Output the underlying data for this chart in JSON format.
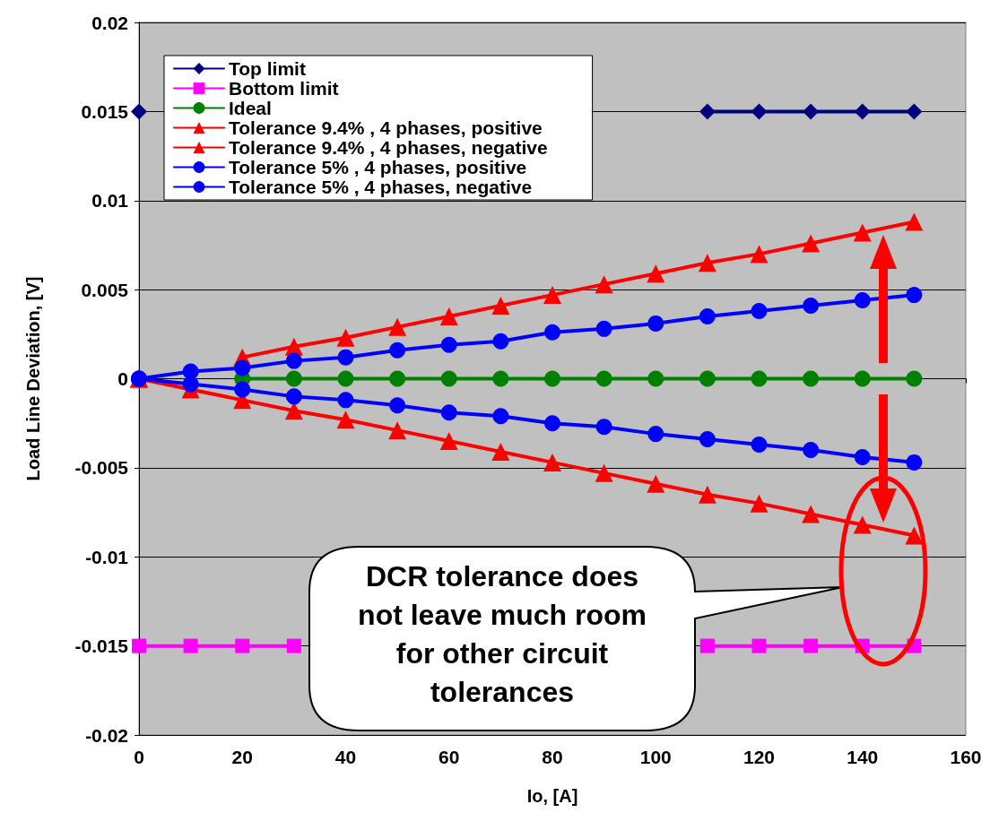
{
  "chart_data": {
    "type": "line",
    "xlabel": "Io, [A]",
    "ylabel": "Load Line Deviation, [V]",
    "x": [
      0,
      10,
      20,
      30,
      40,
      50,
      60,
      70,
      80,
      90,
      100,
      110,
      120,
      130,
      140,
      150
    ],
    "xlim": [
      0,
      160
    ],
    "xticks": [
      0,
      20,
      40,
      60,
      80,
      100,
      120,
      140,
      160
    ],
    "ylim": [
      -0.02,
      0.02
    ],
    "yticks": [
      -0.02,
      -0.015,
      -0.01,
      -0.005,
      0,
      0.005,
      0.01,
      0.015,
      0.02
    ],
    "grid": "y",
    "legend": "top left",
    "line_style": "solid",
    "annotations": [
      "DCR tolerance does not leave much room for other circuit tolerances"
    ],
    "series": [
      {
        "name": "Top limit",
        "color": "#000080",
        "marker": "diamond",
        "values": [
          0.015,
          null,
          null,
          null,
          null,
          null,
          null,
          null,
          null,
          null,
          null,
          0.015,
          0.015,
          0.015,
          0.015,
          0.015
        ]
      },
      {
        "name": "Bottom limit",
        "color": "#ff00ff",
        "marker": "square",
        "values": [
          -0.015,
          -0.015,
          -0.015,
          -0.015,
          null,
          null,
          null,
          null,
          null,
          null,
          null,
          -0.015,
          -0.015,
          -0.015,
          -0.015,
          -0.015
        ]
      },
      {
        "name": "Ideal",
        "color": "#008000",
        "marker": "circle",
        "values": [
          0,
          null,
          0,
          0,
          0,
          0,
          0,
          0,
          0,
          0,
          0,
          0,
          0,
          0,
          0,
          0
        ]
      },
      {
        "name": "Tolerance 9.4% , 4 phases, positive",
        "color": "#ff0000",
        "marker": "triangle",
        "values": [
          0,
          null,
          0.0012,
          0.0018,
          0.0023,
          0.0029,
          0.0035,
          0.0041,
          0.0047,
          0.0053,
          0.0059,
          0.0065,
          0.007,
          0.0076,
          0.0082,
          0.0088
        ]
      },
      {
        "name": "Tolerance 9.4% , 4 phases, negative",
        "color": "#ff0000",
        "marker": "triangle",
        "values": [
          0,
          -0.0006,
          -0.0012,
          -0.0018,
          -0.0023,
          -0.0029,
          -0.0035,
          -0.0041,
          -0.0047,
          -0.0053,
          -0.0059,
          -0.0065,
          -0.007,
          -0.0076,
          -0.0082,
          -0.0088
        ]
      },
      {
        "name": "Tolerance 5% , 4 phases, positive",
        "color": "#0000ff",
        "marker": "circle",
        "values": [
          0,
          0.0004,
          0.0006,
          0.001,
          0.0012,
          0.0016,
          0.0019,
          0.0021,
          0.0026,
          0.0028,
          0.0031,
          0.0035,
          0.0038,
          0.0041,
          0.0044,
          0.0047
        ]
      },
      {
        "name": "Tolerance 5% , 4 phases, negative",
        "color": "#0000ff",
        "marker": "circle",
        "values": [
          0,
          -0.0003,
          -0.0006,
          -0.001,
          -0.0012,
          -0.0015,
          -0.0019,
          -0.0021,
          -0.0025,
          -0.0027,
          -0.0031,
          -0.0034,
          -0.0037,
          -0.004,
          -0.0044,
          -0.0047
        ]
      }
    ]
  }
}
